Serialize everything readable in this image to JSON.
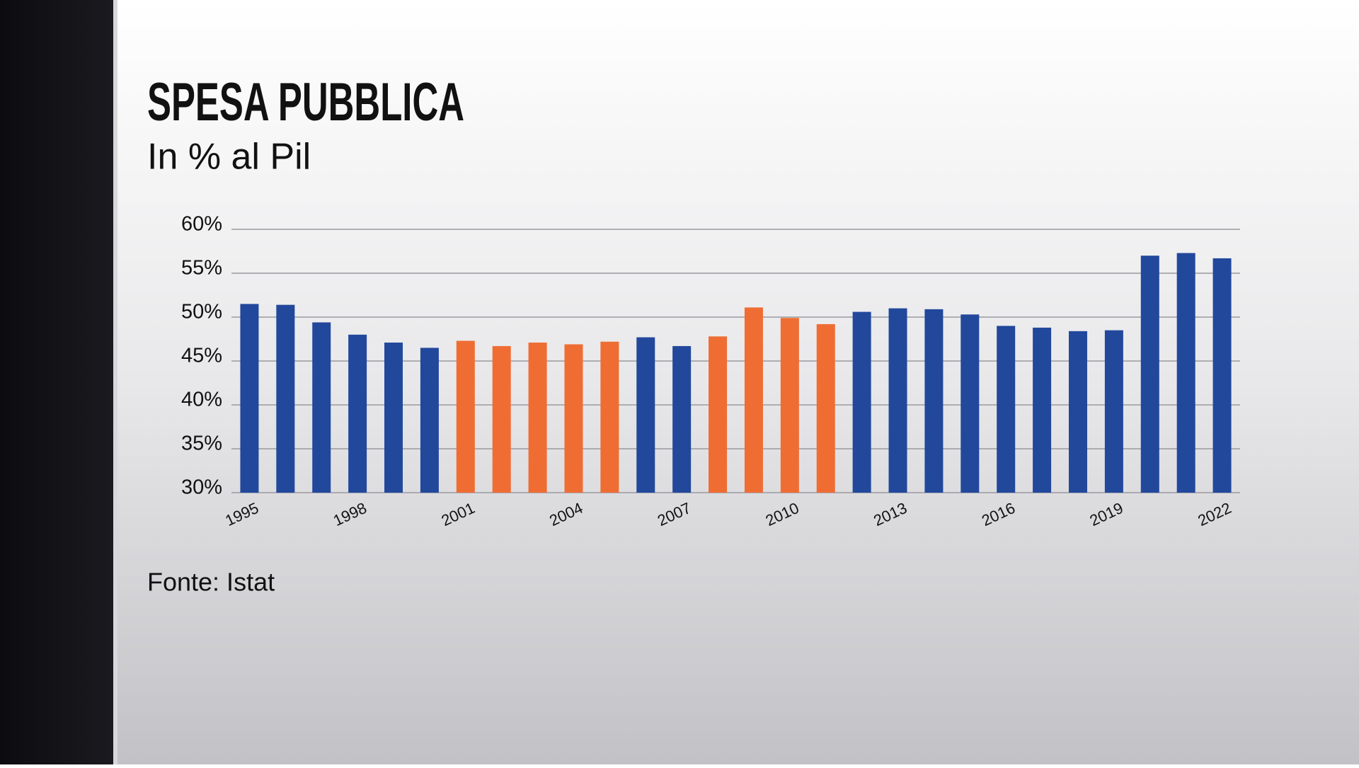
{
  "chart_data": {
    "type": "bar",
    "title": "SPESA PUBBLICA",
    "subtitle": "In % al Pil",
    "source": "Fonte: Istat",
    "categories": [
      "1995",
      null,
      null,
      "1998",
      null,
      null,
      "2001",
      null,
      null,
      "2004",
      null,
      null,
      "2007",
      null,
      null,
      "2010",
      null,
      null,
      "2013",
      null,
      null,
      "2016",
      null,
      null,
      "2019",
      null,
      null,
      "2022"
    ],
    "values": [
      51.5,
      51.4,
      49.4,
      48.0,
      47.1,
      46.5,
      47.3,
      46.7,
      47.1,
      46.9,
      47.2,
      47.7,
      46.7,
      47.8,
      51.1,
      49.9,
      49.2,
      50.6,
      51.0,
      50.9,
      50.3,
      49.0,
      48.8,
      48.4,
      48.5,
      57.0,
      57.3,
      56.7
    ],
    "colors": [
      "#22489c",
      "#22489c",
      "#22489c",
      "#22489c",
      "#22489c",
      "#22489c",
      "#ef6d33",
      "#ef6d33",
      "#ef6d33",
      "#ef6d33",
      "#ef6d33",
      "#22489c",
      "#22489c",
      "#ef6d33",
      "#ef6d33",
      "#ef6d33",
      "#ef6d33",
      "#22489c",
      "#22489c",
      "#22489c",
      "#22489c",
      "#22489c",
      "#22489c",
      "#22489c",
      "#22489c",
      "#22489c",
      "#22489c",
      "#22489c"
    ],
    "ylim": [
      30,
      60
    ],
    "yticks": [
      {
        "value": 30,
        "label": "30%"
      },
      {
        "value": 35,
        "label": "35%"
      },
      {
        "value": 40,
        "label": "40%"
      },
      {
        "value": 45,
        "label": "45%"
      },
      {
        "value": 50,
        "label": "50%"
      },
      {
        "value": 55,
        "label": "55%"
      },
      {
        "value": 60,
        "label": "60%"
      }
    ],
    "grid": true
  }
}
